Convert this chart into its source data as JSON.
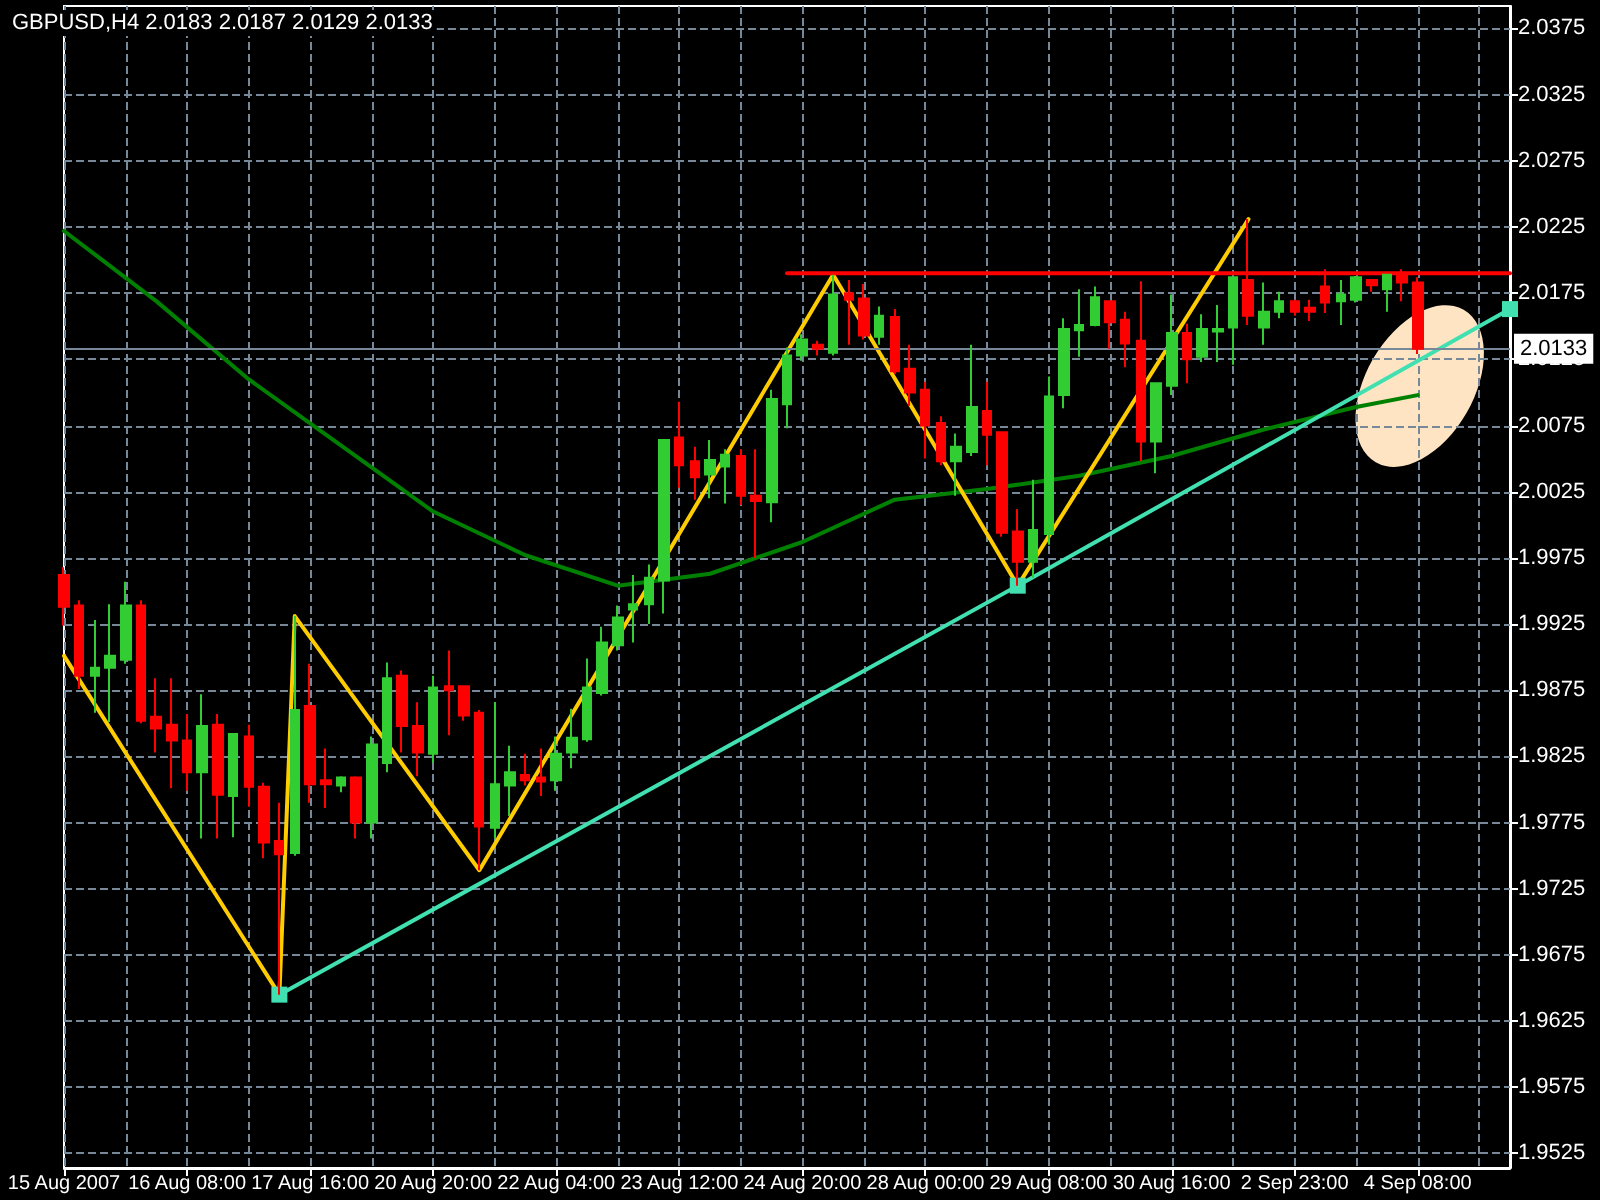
{
  "chart_data": {
    "type": "candlestick",
    "title": "GBPUSD,H4 2.0183 2.0187 2.0129 2.0133",
    "categories": [
      "15 Aug 2007",
      null,
      null,
      null,
      null,
      null,
      null,
      null,
      "16 Aug 08:00",
      null,
      null,
      null,
      null,
      null,
      null,
      null,
      "17 Aug 16:00",
      null,
      null,
      null,
      null,
      null,
      null,
      null,
      "20 Aug 20:00",
      null,
      null,
      null,
      null,
      null,
      null,
      null,
      "22 Aug 04:00",
      null,
      null,
      null,
      null,
      null,
      null,
      null,
      "23 Aug 12:00",
      null,
      null,
      null,
      null,
      null,
      null,
      null,
      "24 Aug 20:00",
      null,
      null,
      null,
      null,
      null,
      null,
      null,
      "28 Aug 00:00",
      null,
      null,
      null,
      null,
      null,
      null,
      null,
      "29 Aug 08:00",
      null,
      null,
      null,
      null,
      null,
      null,
      null,
      "30 Aug 16:00",
      null,
      null,
      null,
      null,
      null,
      null,
      null,
      "2 Sep 23:00",
      null,
      null,
      null,
      null,
      null,
      null,
      null,
      "4 Sep 08:00",
      null,
      null,
      null,
      null,
      null,
      null
    ],
    "series": [
      {
        "ohlc": [
          [
            1.9962,
            1.9968,
            1.9924,
            1.9938
          ],
          [
            1.9939,
            1.9943,
            1.9876,
            1.9886
          ],
          [
            1.9886,
            1.9928,
            1.9858,
            1.9892
          ],
          [
            1.9892,
            1.994,
            1.9851,
            1.9901
          ],
          [
            1.9898,
            1.9957,
            1.9895,
            1.9939
          ],
          [
            1.9939,
            1.9943,
            1.985,
            1.9852
          ],
          [
            1.9855,
            1.9884,
            1.9828,
            1.9846
          ],
          [
            1.9849,
            1.9884,
            1.9801,
            1.9837
          ],
          [
            1.9837,
            1.9857,
            1.9799,
            1.9813
          ],
          [
            1.9813,
            1.9872,
            1.9763,
            1.9848
          ],
          [
            1.9849,
            1.9857,
            1.9763,
            1.9796
          ],
          [
            1.9795,
            1.9842,
            1.9764,
            1.9842
          ],
          [
            1.984,
            1.9849,
            1.9787,
            1.9802
          ],
          [
            1.9802,
            1.9805,
            1.9748,
            1.976
          ],
          [
            1.9761,
            1.979,
            1.9645,
            1.9751
          ],
          [
            1.9752,
            1.9931,
            1.975,
            1.986
          ],
          [
            1.9863,
            1.9895,
            1.979,
            1.9804
          ],
          [
            1.9807,
            1.9831,
            1.9786,
            1.9804
          ],
          [
            1.9803,
            1.981,
            1.9798,
            1.9809
          ],
          [
            1.9809,
            1.981,
            1.9763,
            1.9775
          ],
          [
            1.9775,
            1.984,
            1.9763,
            1.9834
          ],
          [
            1.982,
            1.9896,
            1.9813,
            1.9884
          ],
          [
            1.9886,
            1.989,
            1.9828,
            1.9848
          ],
          [
            1.9848,
            1.9866,
            1.981,
            1.9828
          ],
          [
            1.9827,
            1.9886,
            1.982,
            1.9877
          ],
          [
            1.9878,
            1.9905,
            1.9841,
            1.9875
          ],
          [
            1.9878,
            1.9878,
            1.9852,
            1.9856
          ],
          [
            1.9858,
            1.986,
            1.9739,
            1.9772
          ],
          [
            1.9771,
            1.9866,
            1.9763,
            1.9804
          ],
          [
            1.9803,
            1.9833,
            1.978,
            1.9813
          ],
          [
            1.9811,
            1.9827,
            1.9803,
            1.9807
          ],
          [
            1.9809,
            1.9831,
            1.9795,
            1.9806
          ],
          [
            1.9807,
            1.984,
            1.9799,
            1.9827
          ],
          [
            1.9828,
            1.9861,
            1.9816,
            1.9839
          ],
          [
            1.9838,
            1.9899,
            1.9836,
            1.9877
          ],
          [
            1.9873,
            1.9923,
            1.9871,
            1.9911
          ],
          [
            1.9909,
            1.9939,
            1.9905,
            1.993
          ],
          [
            1.9936,
            1.9962,
            1.9911,
            1.994
          ],
          [
            1.994,
            1.997,
            1.9925,
            1.996
          ],
          [
            1.9958,
            2.0064,
            1.9933,
            2.0064
          ],
          [
            2.0066,
            2.0093,
            2.0028,
            2.0045
          ],
          [
            2.0048,
            2.0059,
            2.0019,
            2.0036
          ],
          [
            2.0038,
            2.0064,
            2.002,
            2.0049
          ],
          [
            2.0044,
            2.0057,
            2.0016,
            2.0053
          ],
          [
            2.0052,
            2.0057,
            2.0015,
            2.0022
          ],
          [
            2.0022,
            2.0057,
            1.9975,
            2.0018
          ],
          [
            2.0017,
            2.0102,
            2.0002,
            2.0095
          ],
          [
            2.0091,
            2.0134,
            2.0073,
            2.0128
          ],
          [
            2.0128,
            2.0144,
            2.0124,
            2.014
          ],
          [
            2.0136,
            2.0139,
            2.0128,
            2.0133
          ],
          [
            2.013,
            2.0189,
            2.0128,
            2.0174
          ],
          [
            2.0175,
            2.0185,
            2.0136,
            2.017
          ],
          [
            2.0171,
            2.0182,
            2.014,
            2.0143
          ],
          [
            2.0142,
            2.0165,
            2.0136,
            2.0158
          ],
          [
            2.0157,
            2.0163,
            2.0114,
            2.0116
          ],
          [
            2.0118,
            2.0136,
            2.009,
            2.01
          ],
          [
            2.0102,
            2.0108,
            2.005,
            2.0075
          ],
          [
            2.0077,
            2.0082,
            2.0045,
            2.0048
          ],
          [
            2.0048,
            2.0069,
            2.0022,
            2.0059
          ],
          [
            2.0055,
            2.0136,
            2.0052,
            2.0089
          ],
          [
            2.0086,
            2.0108,
            2.0045,
            2.0068
          ],
          [
            2.007,
            2.007,
            1.9991,
            1.9994
          ],
          [
            1.9995,
            2.0012,
            1.9954,
            1.9972
          ],
          [
            1.9972,
            2.0034,
            1.996,
            1.9996
          ],
          [
            1.9993,
            2.0112,
            1.9985,
            2.0097
          ],
          [
            2.0098,
            2.0156,
            2.0088,
            2.0148
          ],
          [
            2.0147,
            2.0178,
            2.0127,
            2.0151
          ],
          [
            2.0151,
            2.018,
            2.015,
            2.0172
          ],
          [
            2.0169,
            2.0169,
            2.0133,
            2.0153
          ],
          [
            2.0155,
            2.0161,
            2.0119,
            2.0137
          ],
          [
            2.0139,
            2.0184,
            2.0048,
            2.0063
          ],
          [
            2.0063,
            2.0107,
            2.0039,
            2.0107
          ],
          [
            2.0105,
            2.0174,
            2.0098,
            2.0145
          ],
          [
            2.0145,
            2.0152,
            2.0107,
            2.0125
          ],
          [
            2.0127,
            2.0159,
            2.0123,
            2.0148
          ],
          [
            2.0146,
            2.0166,
            2.0123,
            2.0148
          ],
          [
            2.0149,
            2.0187,
            2.0121,
            2.0187
          ],
          [
            2.0185,
            2.0231,
            2.0151,
            2.0158
          ],
          [
            2.0149,
            2.0183,
            2.0136,
            2.0161
          ],
          [
            2.0161,
            2.0176,
            2.0156,
            2.0169
          ],
          [
            2.0169,
            2.017,
            2.0158,
            2.0161
          ],
          [
            2.0164,
            2.017,
            2.0154,
            2.0161
          ],
          [
            2.018,
            2.0193,
            2.016,
            2.0168
          ],
          [
            2.0169,
            2.0185,
            2.0151,
            2.0174
          ],
          [
            2.017,
            2.0188,
            2.0168,
            2.0187
          ],
          [
            2.0185,
            2.0185,
            2.0176,
            2.0181
          ],
          [
            2.0178,
            2.0189,
            2.0161,
            2.0189
          ],
          [
            2.0189,
            2.0193,
            2.0169,
            2.0183
          ],
          [
            2.0183,
            2.0187,
            2.0129,
            2.0133
          ],
          null,
          null,
          null,
          null,
          null,
          null
        ],
        "colors": [
          "#ff0000",
          "#ff0000",
          "#32cd32",
          "#32cd32",
          "#32cd32",
          "#ff0000",
          "#ff0000",
          "#ff0000",
          "#ff0000",
          "#32cd32",
          "#ff0000",
          "#32cd32",
          "#ff0000",
          "#ff0000",
          "#ff0000",
          "#32cd32",
          "#ff0000",
          "#ff0000",
          "#32cd32",
          "#ff0000",
          "#32cd32",
          "#32cd32",
          "#ff0000",
          "#ff0000",
          "#32cd32",
          "#ff0000",
          "#ff0000",
          "#ff0000",
          "#32cd32",
          "#32cd32",
          "#ff0000",
          "#ff0000",
          "#32cd32",
          "#32cd32",
          "#32cd32",
          "#32cd32",
          "#32cd32",
          "#32cd32",
          "#32cd32",
          "#32cd32",
          "#ff0000",
          "#ff0000",
          "#32cd32",
          "#32cd32",
          "#ff0000",
          "#ff0000",
          "#32cd32",
          "#32cd32",
          "#32cd32",
          "#ff0000",
          "#32cd32",
          "#ff0000",
          "#ff0000",
          "#32cd32",
          "#ff0000",
          "#ff0000",
          "#ff0000",
          "#ff0000",
          "#32cd32",
          "#32cd32",
          "#ff0000",
          "#ff0000",
          "#ff0000",
          "#32cd32",
          "#32cd32",
          "#32cd32",
          "#32cd32",
          "#32cd32",
          "#ff0000",
          "#ff0000",
          "#ff0000",
          "#32cd32",
          "#32cd32",
          "#ff0000",
          "#32cd32",
          "#32cd32",
          "#32cd32",
          "#ff0000",
          "#32cd32",
          "#32cd32",
          "#ff0000",
          "#ff0000",
          "#ff0000",
          "#32cd32",
          "#32cd32",
          "#ff0000",
          "#32cd32",
          "#ff0000",
          "#ff0000",
          null,
          null,
          null,
          null,
          null,
          null
        ]
      },
      {
        "type": "line",
        "color": "#008000",
        "marker": "none",
        "values": [
          2.0222,
          null,
          null,
          null,
          null,
          null,
          2.0169,
          null,
          null,
          null,
          null,
          null,
          2.011,
          null,
          null,
          null,
          null,
          null,
          2.006,
          null,
          null,
          null,
          null,
          null,
          2.001,
          null,
          null,
          null,
          null,
          null,
          1.9977,
          null,
          null,
          null,
          null,
          null,
          1.9954,
          null,
          null,
          null,
          null,
          null,
          1.9963,
          null,
          null,
          null,
          null,
          null,
          1.9987,
          null,
          null,
          null,
          null,
          null,
          2.0019,
          null,
          null,
          null,
          null,
          null,
          2.0027,
          null,
          null,
          null,
          null,
          null,
          2.0037,
          null,
          null,
          null,
          null,
          null,
          2.0052,
          null,
          null,
          null,
          null,
          null,
          2.0072,
          null,
          null,
          null,
          null,
          null,
          2.0089,
          null,
          null,
          null,
          2.0098,
          null,
          null,
          null,
          null,
          null,
          null
        ]
      },
      {
        "type": "line",
        "color": "#ffcc00",
        "marker": "none",
        "values": [
          1.9901,
          null,
          null,
          null,
          null,
          null,
          null,
          null,
          null,
          null,
          null,
          null,
          null,
          null,
          1.9645,
          1.9931,
          null,
          null,
          null,
          null,
          null,
          null,
          null,
          null,
          null,
          null,
          null,
          1.9739,
          null,
          null,
          null,
          null,
          null,
          null,
          null,
          null,
          null,
          null,
          null,
          null,
          null,
          null,
          null,
          null,
          null,
          null,
          null,
          null,
          null,
          null,
          2.0189,
          null,
          null,
          null,
          null,
          null,
          null,
          null,
          null,
          null,
          null,
          null,
          1.9954,
          null,
          null,
          null,
          null,
          null,
          null,
          null,
          null,
          null,
          null,
          null,
          null,
          null,
          null,
          2.0231,
          null,
          null,
          null,
          null,
          null,
          null,
          null,
          null,
          null,
          null,
          null,
          null,
          null,
          null,
          null,
          null,
          null
        ]
      },
      {
        "type": "line",
        "color": "#40e0b0",
        "marker": "square",
        "values": [
          null,
          null,
          null,
          null,
          null,
          null,
          null,
          null,
          null,
          null,
          null,
          null,
          null,
          null,
          1.9645,
          null,
          null,
          null,
          null,
          null,
          null,
          null,
          null,
          null,
          null,
          null,
          null,
          null,
          null,
          null,
          null,
          null,
          null,
          null,
          null,
          null,
          null,
          null,
          null,
          null,
          null,
          null,
          null,
          null,
          null,
          null,
          null,
          null,
          null,
          null,
          null,
          null,
          null,
          null,
          null,
          null,
          null,
          null,
          null,
          null,
          null,
          null,
          1.9954,
          null,
          null,
          null,
          null,
          null,
          null,
          null,
          null,
          null,
          null,
          null,
          null,
          null,
          null,
          null,
          null,
          null,
          null,
          null,
          null,
          null,
          null,
          null,
          null,
          null,
          null,
          null,
          null,
          null,
          null,
          null,
          2.0163
        ]
      },
      {
        "type": "line",
        "color": "#ff0000",
        "marker": "none",
        "values": [
          null,
          null,
          null,
          null,
          null,
          null,
          null,
          null,
          null,
          null,
          null,
          null,
          null,
          null,
          null,
          null,
          null,
          null,
          null,
          null,
          null,
          null,
          null,
          null,
          null,
          null,
          null,
          null,
          null,
          null,
          null,
          null,
          null,
          null,
          null,
          null,
          null,
          null,
          null,
          null,
          null,
          null,
          null,
          null,
          null,
          null,
          null,
          2.019,
          null,
          null,
          null,
          null,
          null,
          null,
          null,
          null,
          null,
          null,
          null,
          null,
          null,
          null,
          null,
          null,
          null,
          null,
          null,
          null,
          null,
          null,
          null,
          null,
          null,
          null,
          null,
          null,
          null,
          null,
          null,
          null,
          null,
          null,
          null,
          null,
          null,
          null,
          null,
          null,
          null,
          null,
          null,
          null,
          null,
          null,
          2.019
        ]
      }
    ],
    "ylim": [
      1.9514,
      2.0392
    ],
    "yticks": [
      1.9525,
      1.9575,
      1.9625,
      1.9675,
      1.9725,
      1.9775,
      1.9825,
      1.9875,
      1.9925,
      1.9975,
      2.0025,
      2.0075,
      2.0125,
      2.0175,
      2.0225,
      2.0275,
      2.0325,
      2.0375
    ],
    "ref_lines": [
      {
        "axis": "y",
        "value": 2.0133,
        "label": "2.0133",
        "color": "#778899"
      }
    ],
    "grid": true
  }
}
